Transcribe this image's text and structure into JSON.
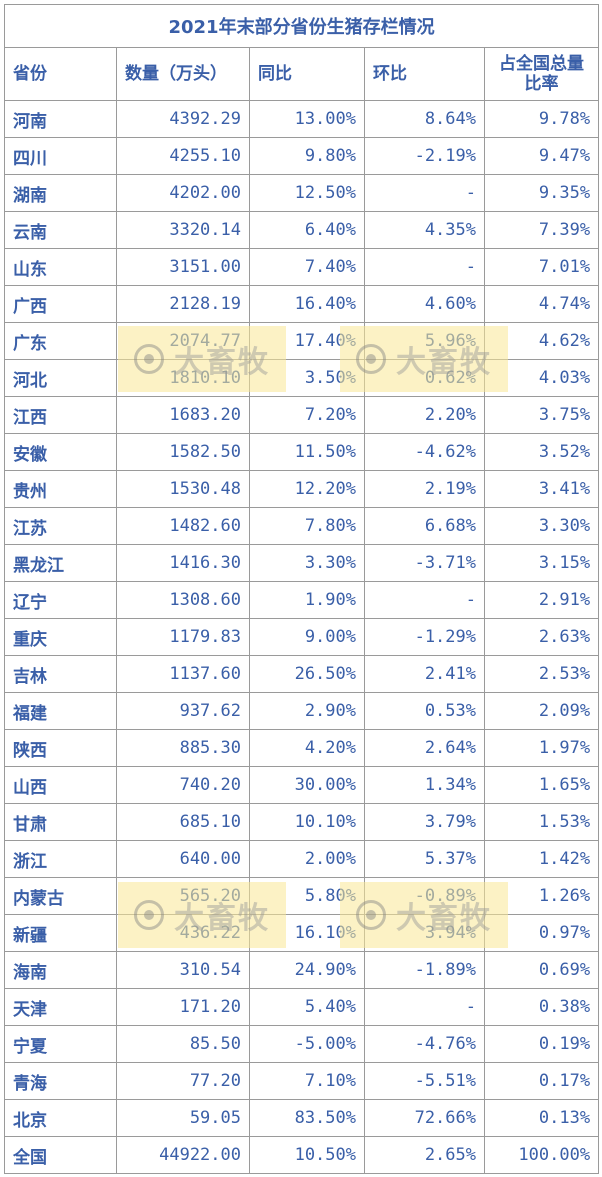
{
  "table": {
    "title": "2021年末部分省份生猪存栏情况",
    "headers": [
      "省份",
      "数量（万头）",
      "同比",
      "环比",
      "占全国总量比率"
    ],
    "rows": [
      [
        "河南",
        "4392.29",
        "13.00%",
        "8.64%",
        "9.78%"
      ],
      [
        "四川",
        "4255.10",
        "9.80%",
        "-2.19%",
        "9.47%"
      ],
      [
        "湖南",
        "4202.00",
        "12.50%",
        "-",
        "9.35%"
      ],
      [
        "云南",
        "3320.14",
        "6.40%",
        "4.35%",
        "7.39%"
      ],
      [
        "山东",
        "3151.00",
        "7.40%",
        "-",
        "7.01%"
      ],
      [
        "广西",
        "2128.19",
        "16.40%",
        "4.60%",
        "4.74%"
      ],
      [
        "广东",
        "2074.77",
        "17.40%",
        "5.96%",
        "4.62%"
      ],
      [
        "河北",
        "1810.10",
        "3.50%",
        "0.62%",
        "4.03%"
      ],
      [
        "江西",
        "1683.20",
        "7.20%",
        "2.20%",
        "3.75%"
      ],
      [
        "安徽",
        "1582.50",
        "11.50%",
        "-4.62%",
        "3.52%"
      ],
      [
        "贵州",
        "1530.48",
        "12.20%",
        "2.19%",
        "3.41%"
      ],
      [
        "江苏",
        "1482.60",
        "7.80%",
        "6.68%",
        "3.30%"
      ],
      [
        "黑龙江",
        "1416.30",
        "3.30%",
        "-3.71%",
        "3.15%"
      ],
      [
        "辽宁",
        "1308.60",
        "1.90%",
        "-",
        "2.91%"
      ],
      [
        "重庆",
        "1179.83",
        "9.00%",
        "-1.29%",
        "2.63%"
      ],
      [
        "吉林",
        "1137.60",
        "26.50%",
        "2.41%",
        "2.53%"
      ],
      [
        "福建",
        "937.62",
        "2.90%",
        "0.53%",
        "2.09%"
      ],
      [
        "陕西",
        "885.30",
        "4.20%",
        "2.64%",
        "1.97%"
      ],
      [
        "山西",
        "740.20",
        "30.00%",
        "1.34%",
        "1.65%"
      ],
      [
        "甘肃",
        "685.10",
        "10.10%",
        "3.79%",
        "1.53%"
      ],
      [
        "浙江",
        "640.00",
        "2.00%",
        "5.37%",
        "1.42%"
      ],
      [
        "内蒙古",
        "565.20",
        "5.80%",
        "-0.89%",
        "1.26%"
      ],
      [
        "新疆",
        "436.22",
        "16.10%",
        "3.94%",
        "0.97%"
      ],
      [
        "海南",
        "310.54",
        "24.90%",
        "-1.89%",
        "0.69%"
      ],
      [
        "天津",
        "171.20",
        "5.40%",
        "-",
        "0.38%"
      ],
      [
        "宁夏",
        "85.50",
        "-5.00%",
        "-4.76%",
        "0.19%"
      ],
      [
        "青海",
        "77.20",
        "7.10%",
        "-5.51%",
        "0.17%"
      ],
      [
        "北京",
        "59.05",
        "83.50%",
        "72.66%",
        "0.13%"
      ],
      [
        "全国",
        "44922.00",
        "10.50%",
        "2.65%",
        "100.00%"
      ]
    ]
  },
  "watermark": {
    "text": "大畜牧",
    "icon": "logo-icon"
  },
  "colors": {
    "text": "#3a5fa8",
    "border": "#9a9a9a",
    "watermark_bg": "#fae896"
  }
}
